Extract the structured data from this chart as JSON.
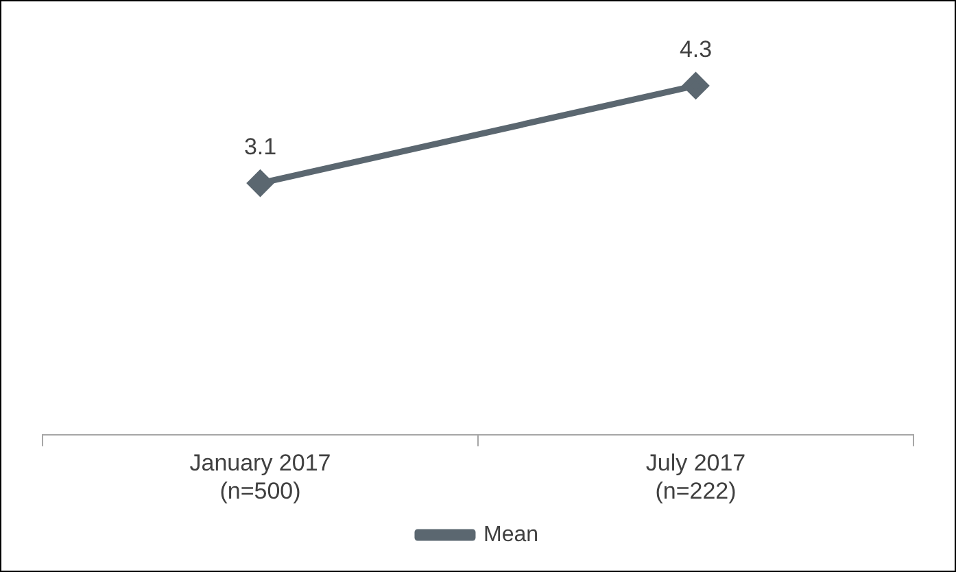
{
  "chart_data": {
    "type": "line",
    "categories": [
      "January 2017\n(n=500)",
      "July 2017\n(n=222)"
    ],
    "series": [
      {
        "name": "Mean",
        "color": "#5b6770",
        "values": [
          3.1,
          4.3
        ]
      }
    ],
    "tick_labels": "x",
    "grid": false,
    "legend": "bottom",
    "marker": "diamond",
    "line_style": "solid",
    "data_labels": true
  }
}
